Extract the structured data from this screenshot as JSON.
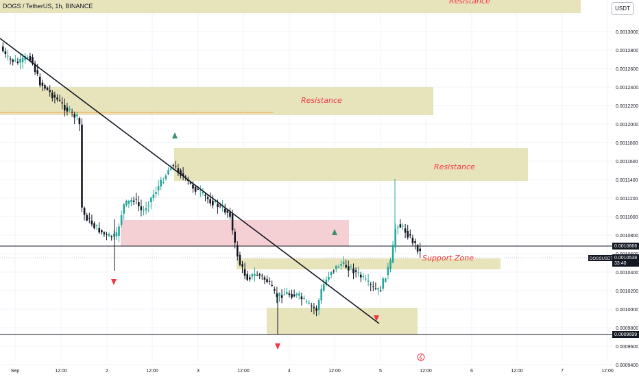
{
  "header": {
    "symbol_line": "DOGS / TetherUS, 1h, BINANCE"
  },
  "axis": {
    "currency_button": "USDT",
    "price_ticks": [
      "0.0013000",
      "0.0012800",
      "0.0012600",
      "0.0012400",
      "0.0012200",
      "0.0012000",
      "0.0011800",
      "0.0011600",
      "0.0011400",
      "0.0011200",
      "0.0011000",
      "0.0010800",
      "0.0010600",
      "0.0010400",
      "0.0010200",
      "0.0010000",
      "0.0009800",
      "0.0009600",
      "0.0009400"
    ],
    "time_ticks": [
      "Sep",
      "12:00",
      "2",
      "12:00",
      "3",
      "12:00",
      "4",
      "12:00",
      "5",
      "12:00",
      "6",
      "12:00",
      "7",
      "12:00"
    ]
  },
  "colors": {
    "up": "#26a69a",
    "down": "#131722",
    "zone": "#e3dfb0",
    "pink_zone": "#f2c8cc",
    "label_red": "#f23645",
    "grid": "#f0f3fa",
    "marker_green": "#3d8f6a",
    "marker_red": "#f23645",
    "orange_line": "#f7a145"
  },
  "chart_data": {
    "type": "candlestick",
    "title": "DOGS / TetherUS, 1h, BINANCE",
    "ylim": [
      0.00094,
      0.001325
    ],
    "time_axis": [
      "Sep",
      "12:00",
      "2",
      "12:00",
      "3",
      "12:00",
      "4",
      "12:00",
      "5",
      "12:00",
      "6",
      "12:00",
      "7",
      "12:00"
    ],
    "price_labels": [
      {
        "name": "line",
        "price": "0.0010666"
      },
      {
        "name": "symbol",
        "text": "DOGSUSDT",
        "price": "0.0010538",
        "countdown": "33:40"
      },
      {
        "name": "low",
        "price": "0.0009699"
      }
    ],
    "zones": [
      {
        "label": "Resistance",
        "from": 0.001224,
        "to": 0.001261
      },
      {
        "label": "Resistance",
        "from": 0.001137,
        "to": 0.001168
      },
      {
        "label": "Support Zone",
        "from": 0.001044,
        "to": 0.001055
      }
    ],
    "top_zone_label": "Resistance"
  }
}
